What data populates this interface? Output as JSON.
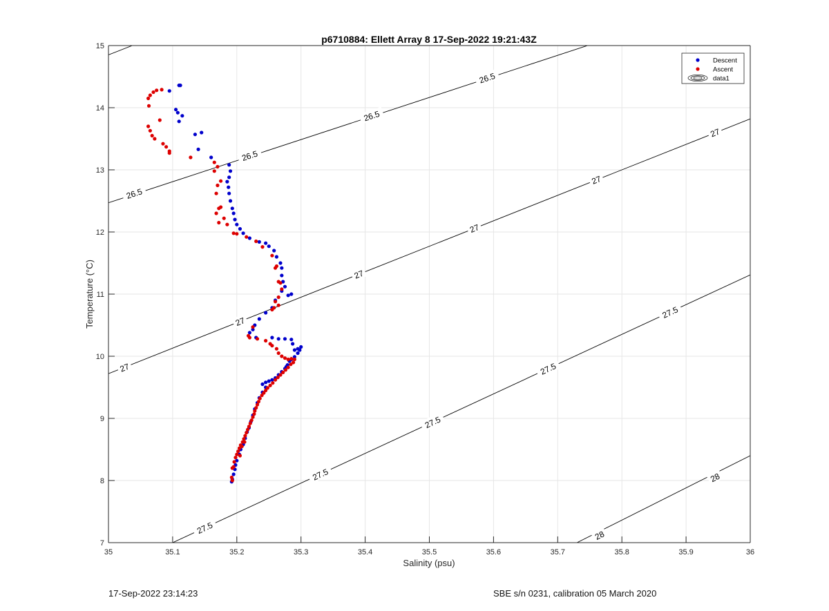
{
  "chart_data": {
    "type": "scatter",
    "title": "p6710884: Ellett Array 8 17-Sep-2022 19:21:43Z",
    "xlabel": "Salinity (psu)",
    "ylabel": "Temperature (°C)",
    "xlim": [
      35,
      36
    ],
    "ylim": [
      7,
      15
    ],
    "xticks": [
      35,
      35.1,
      35.2,
      35.3,
      35.4,
      35.5,
      35.6,
      35.7,
      35.8,
      35.9,
      36
    ],
    "xtick_labels": [
      "35",
      "35.1",
      "35.2",
      "35.3",
      "35.4",
      "35.5",
      "35.6",
      "35.7",
      "35.8",
      "35.9",
      "36"
    ],
    "yticks": [
      7,
      8,
      9,
      10,
      11,
      12,
      13,
      14,
      15
    ],
    "ytick_labels": [
      "7",
      "8",
      "9",
      "10",
      "11",
      "12",
      "13",
      "14",
      "15"
    ],
    "grid": true,
    "legend_position": "top-right",
    "legend": [
      {
        "label": "Descent",
        "color": "#0000cc",
        "marker": "dot"
      },
      {
        "label": "Ascent",
        "color": "#dd0000",
        "marker": "dot"
      },
      {
        "label": "data1",
        "color": "#000000",
        "marker": "contour"
      }
    ],
    "series": [
      {
        "name": "Descent",
        "color": "#0000cc",
        "points": [
          [
            35.11,
            14.36
          ],
          [
            35.112,
            14.36
          ],
          [
            35.095,
            14.27
          ],
          [
            35.105,
            13.97
          ],
          [
            35.108,
            13.92
          ],
          [
            35.115,
            13.87
          ],
          [
            35.11,
            13.78
          ],
          [
            35.145,
            13.6
          ],
          [
            35.135,
            13.57
          ],
          [
            35.14,
            13.33
          ],
          [
            35.16,
            13.2
          ],
          [
            35.188,
            13.08
          ],
          [
            35.19,
            12.98
          ],
          [
            35.188,
            12.88
          ],
          [
            35.185,
            12.81
          ],
          [
            35.187,
            12.72
          ],
          [
            35.188,
            12.62
          ],
          [
            35.19,
            12.5
          ],
          [
            35.193,
            12.38
          ],
          [
            35.195,
            12.3
          ],
          [
            35.197,
            12.2
          ],
          [
            35.2,
            12.12
          ],
          [
            35.205,
            12.05
          ],
          [
            35.21,
            11.98
          ],
          [
            35.22,
            11.9
          ],
          [
            35.235,
            11.84
          ],
          [
            35.245,
            11.82
          ],
          [
            35.25,
            11.77
          ],
          [
            35.258,
            11.7
          ],
          [
            35.262,
            11.6
          ],
          [
            35.268,
            11.5
          ],
          [
            35.27,
            11.42
          ],
          [
            35.27,
            11.3
          ],
          [
            35.272,
            11.2
          ],
          [
            35.275,
            11.12
          ],
          [
            35.27,
            11.05
          ],
          [
            35.28,
            10.98
          ],
          [
            35.285,
            11.0
          ],
          [
            35.26,
            10.9
          ],
          [
            35.255,
            10.78
          ],
          [
            35.245,
            10.7
          ],
          [
            35.235,
            10.6
          ],
          [
            35.228,
            10.5
          ],
          [
            35.225,
            10.43
          ],
          [
            35.22,
            10.38
          ],
          [
            35.23,
            10.3
          ],
          [
            35.255,
            10.3
          ],
          [
            35.265,
            10.28
          ],
          [
            35.275,
            10.28
          ],
          [
            35.285,
            10.27
          ],
          [
            35.287,
            10.2
          ],
          [
            35.29,
            10.1
          ],
          [
            35.295,
            10.12
          ],
          [
            35.3,
            10.15
          ],
          [
            35.298,
            10.1
          ],
          [
            35.295,
            10.05
          ],
          [
            35.29,
            9.99
          ],
          [
            35.285,
            9.95
          ],
          [
            35.282,
            9.92
          ],
          [
            35.279,
            9.86
          ],
          [
            35.277,
            9.83
          ],
          [
            35.275,
            9.8
          ],
          [
            35.27,
            9.75
          ],
          [
            35.265,
            9.7
          ],
          [
            35.26,
            9.65
          ],
          [
            35.255,
            9.62
          ],
          [
            35.25,
            9.6
          ],
          [
            35.245,
            9.58
          ],
          [
            35.24,
            9.55
          ],
          [
            35.245,
            9.5
          ],
          [
            35.24,
            9.42
          ],
          [
            35.235,
            9.33
          ],
          [
            35.232,
            9.25
          ],
          [
            35.228,
            9.15
          ],
          [
            35.225,
            9.05
          ],
          [
            35.222,
            8.95
          ],
          [
            35.219,
            8.85
          ],
          [
            35.216,
            8.78
          ],
          [
            35.213,
            8.68
          ],
          [
            35.21,
            8.58
          ],
          [
            35.206,
            8.5
          ],
          [
            35.204,
            8.42
          ],
          [
            35.2,
            8.32
          ],
          [
            35.198,
            8.25
          ],
          [
            35.197,
            8.18
          ],
          [
            35.195,
            8.1
          ],
          [
            35.193,
            8.02
          ],
          [
            35.192,
            7.98
          ]
        ]
      },
      {
        "name": "Ascent",
        "color": "#dd0000",
        "points": [
          [
            35.075,
            14.28
          ],
          [
            35.083,
            14.29
          ],
          [
            35.07,
            14.25
          ],
          [
            35.065,
            14.2
          ],
          [
            35.062,
            14.15
          ],
          [
            35.063,
            14.03
          ],
          [
            35.08,
            13.8
          ],
          [
            35.062,
            13.7
          ],
          [
            35.065,
            13.63
          ],
          [
            35.068,
            13.55
          ],
          [
            35.072,
            13.5
          ],
          [
            35.085,
            13.42
          ],
          [
            35.09,
            13.37
          ],
          [
            35.095,
            13.3
          ],
          [
            35.095,
            13.27
          ],
          [
            35.128,
            13.2
          ],
          [
            35.165,
            13.12
          ],
          [
            35.17,
            13.05
          ],
          [
            35.165,
            12.98
          ],
          [
            35.175,
            12.82
          ],
          [
            35.17,
            12.75
          ],
          [
            35.168,
            12.62
          ],
          [
            35.175,
            12.4
          ],
          [
            35.172,
            12.38
          ],
          [
            35.168,
            12.3
          ],
          [
            35.18,
            12.22
          ],
          [
            35.172,
            12.15
          ],
          [
            35.185,
            12.12
          ],
          [
            35.195,
            11.98
          ],
          [
            35.2,
            11.97
          ],
          [
            35.215,
            11.92
          ],
          [
            35.23,
            11.85
          ],
          [
            35.24,
            11.76
          ],
          [
            35.255,
            11.62
          ],
          [
            35.262,
            11.45
          ],
          [
            35.26,
            11.42
          ],
          [
            35.265,
            11.2
          ],
          [
            35.268,
            11.18
          ],
          [
            35.27,
            11.08
          ],
          [
            35.265,
            10.95
          ],
          [
            35.26,
            10.88
          ],
          [
            35.265,
            10.82
          ],
          [
            35.258,
            10.78
          ],
          [
            35.255,
            10.75
          ],
          [
            35.225,
            10.47
          ],
          [
            35.218,
            10.33
          ],
          [
            35.22,
            10.3
          ],
          [
            35.232,
            10.28
          ],
          [
            35.245,
            10.25
          ],
          [
            35.252,
            10.2
          ],
          [
            35.255,
            10.17
          ],
          [
            35.262,
            10.12
          ],
          [
            35.265,
            10.05
          ],
          [
            35.27,
            10.0
          ],
          [
            35.275,
            9.97
          ],
          [
            35.28,
            9.95
          ],
          [
            35.285,
            9.96
          ],
          [
            35.29,
            9.95
          ],
          [
            35.288,
            9.9
          ],
          [
            35.284,
            9.87
          ],
          [
            35.28,
            9.82
          ],
          [
            35.276,
            9.78
          ],
          [
            35.272,
            9.74
          ],
          [
            35.268,
            9.7
          ],
          [
            35.264,
            9.66
          ],
          [
            35.26,
            9.62
          ],
          [
            35.256,
            9.57
          ],
          [
            35.252,
            9.53
          ],
          [
            35.248,
            9.49
          ],
          [
            35.245,
            9.45
          ],
          [
            35.242,
            9.41
          ],
          [
            35.239,
            9.37
          ],
          [
            35.236,
            9.32
          ],
          [
            35.234,
            9.27
          ],
          [
            35.232,
            9.22
          ],
          [
            35.23,
            9.17
          ],
          [
            35.228,
            9.12
          ],
          [
            35.227,
            9.07
          ],
          [
            35.225,
            9.02
          ],
          [
            35.223,
            8.97
          ],
          [
            35.221,
            8.92
          ],
          [
            35.219,
            8.87
          ],
          [
            35.217,
            8.82
          ],
          [
            35.215,
            8.77
          ],
          [
            35.213,
            8.72
          ],
          [
            35.211,
            8.67
          ],
          [
            35.209,
            8.62
          ],
          [
            35.206,
            8.57
          ],
          [
            35.204,
            8.52
          ],
          [
            35.202,
            8.47
          ],
          [
            35.2,
            8.42
          ],
          [
            35.198,
            8.37
          ],
          [
            35.196,
            8.3
          ],
          [
            35.195,
            8.22
          ],
          [
            35.193,
            8.2
          ],
          [
            35.192,
            8.05
          ],
          [
            35.193,
            8.0
          ],
          [
            35.205,
            8.4
          ],
          [
            35.208,
            8.55
          ],
          [
            35.212,
            8.62
          ]
        ]
      }
    ],
    "contours": [
      {
        "level": "26.5",
        "points": [
          [
            35.0,
            12.47
          ],
          [
            36.0,
            15.86
          ]
        ],
        "labels": [
          [
            35.04,
            12.62
          ],
          [
            35.22,
            13.23
          ],
          [
            35.41,
            13.87
          ],
          [
            35.59,
            14.48
          ]
        ]
      },
      {
        "level": "27",
        "points": [
          [
            35.0,
            9.72
          ],
          [
            36.0,
            13.82
          ]
        ],
        "labels": [
          [
            35.025,
            9.82
          ],
          [
            35.205,
            10.56
          ],
          [
            35.39,
            11.32
          ],
          [
            35.57,
            12.06
          ],
          [
            35.76,
            12.84
          ],
          [
            35.945,
            13.6
          ]
        ]
      },
      {
        "level": "27.5",
        "points": [
          [
            35.1,
            7.0
          ],
          [
            36.0,
            11.31
          ]
        ],
        "labels": [
          [
            35.15,
            7.24
          ],
          [
            35.33,
            8.1
          ],
          [
            35.505,
            8.94
          ],
          [
            35.685,
            9.8
          ],
          [
            35.875,
            10.71
          ]
        ]
      },
      {
        "level": "28",
        "points": [
          [
            35.73,
            7.0
          ],
          [
            36.0,
            8.4
          ]
        ],
        "labels": [
          [
            35.765,
            7.12
          ],
          [
            35.945,
            8.05
          ]
        ]
      },
      {
        "level": "",
        "points": [
          [
            35.0,
            14.85
          ],
          [
            35.037,
            15.0
          ]
        ],
        "labels": []
      }
    ]
  },
  "footer": {
    "left": "17-Sep-2022 23:14:23",
    "right": "SBE s/n 0231, calibration 05 March 2020"
  }
}
